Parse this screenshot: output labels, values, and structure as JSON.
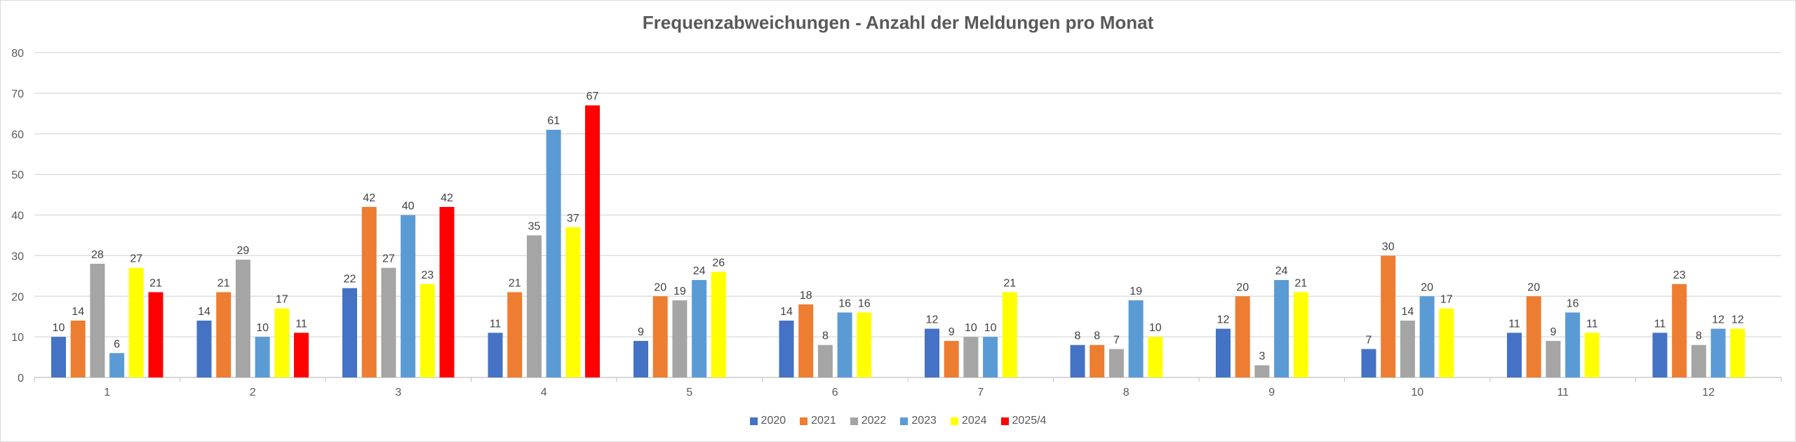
{
  "chart_data": {
    "type": "bar",
    "title": "Frequenzabweichungen - Anzahl der Meldungen pro Monat",
    "xlabel": "",
    "ylabel": "",
    "ylim": [
      0,
      80
    ],
    "yticks": [
      0,
      10,
      20,
      30,
      40,
      50,
      60,
      70,
      80
    ],
    "grid": true,
    "legend_position": "bottom",
    "categories": [
      "1",
      "2",
      "3",
      "4",
      "5",
      "6",
      "7",
      "8",
      "9",
      "10",
      "11",
      "12"
    ],
    "series": [
      {
        "name": "2020",
        "color": "#4472c4",
        "values": [
          10,
          14,
          22,
          11,
          9,
          14,
          12,
          8,
          12,
          7,
          11,
          11
        ]
      },
      {
        "name": "2021",
        "color": "#ed7d31",
        "values": [
          14,
          21,
          42,
          21,
          20,
          18,
          9,
          8,
          20,
          30,
          20,
          23
        ]
      },
      {
        "name": "2022",
        "color": "#a5a5a5",
        "values": [
          28,
          29,
          27,
          35,
          19,
          8,
          10,
          7,
          3,
          14,
          9,
          8
        ]
      },
      {
        "name": "2023",
        "color": "#5b9bd5",
        "values": [
          6,
          10,
          40,
          61,
          24,
          16,
          10,
          19,
          24,
          20,
          16,
          12
        ]
      },
      {
        "name": "2024",
        "color": "#ffff00",
        "values": [
          27,
          17,
          23,
          37,
          26,
          16,
          21,
          10,
          21,
          17,
          11,
          12
        ]
      },
      {
        "name": "2025/4",
        "color": "#ff0000",
        "values": [
          21,
          11,
          42,
          67,
          null,
          null,
          null,
          null,
          null,
          null,
          null,
          null
        ]
      }
    ]
  }
}
